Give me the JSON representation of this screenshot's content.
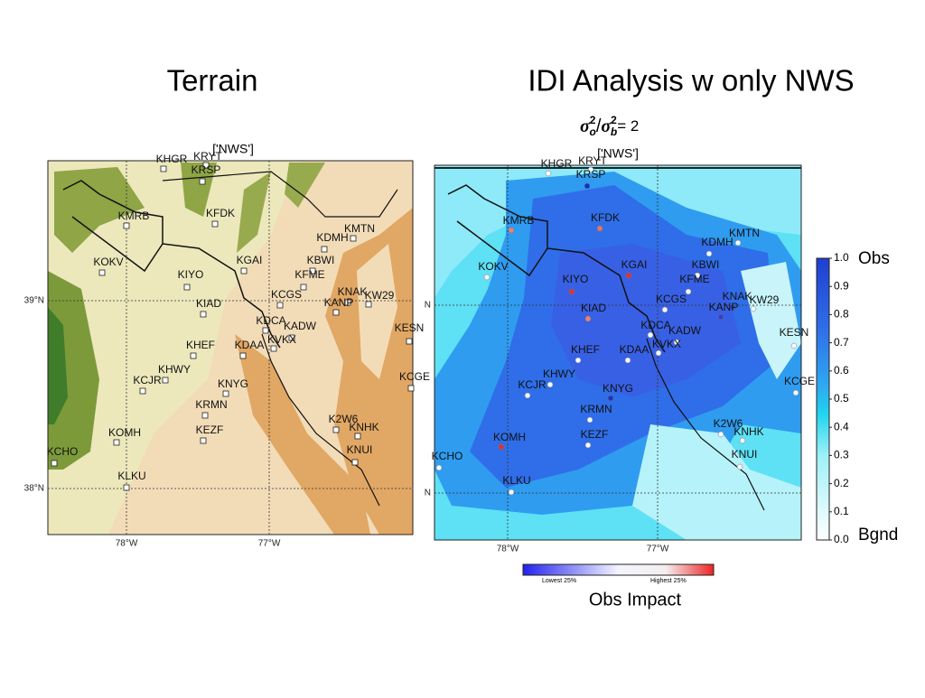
{
  "titles": {
    "terrain": "Terrain",
    "idi": "IDI Analysis w only NWS"
  },
  "ratio": {
    "num": "σ",
    "num_sup": "2",
    "num_sub": "o",
    "slash": "/",
    "den": "σ",
    "den_sup": "2",
    "den_sub": "b",
    "rest": "= 2"
  },
  "maps": [
    {
      "network": "['NWS']",
      "lat_labels": [
        "39°N",
        "38°N"
      ],
      "lon_labels": [
        "78°W",
        "77°W"
      ]
    },
    {
      "network": "['NWS']",
      "lat_labels": [
        "N",
        "N"
      ],
      "lon_labels": [
        "78°W",
        "77°W"
      ]
    }
  ],
  "stations": [
    "KHGR",
    "KRYT",
    "KRSP",
    "KMRB",
    "KFDK",
    "KOKV",
    "KGAI",
    "KDMH",
    "KMTN",
    "KBWI",
    "KIYO",
    "KFME",
    "KCGS",
    "KNAK",
    "KW29",
    "KANP",
    "KIAD",
    "KDCA",
    "KADW",
    "KVKX",
    "KESN",
    "KHEF",
    "KDAA",
    "KHWY",
    "KCJR",
    "KNYG",
    "KCGE",
    "KRMN",
    "K2W6",
    "KNHK",
    "KOMH",
    "KEZF",
    "KNUI",
    "KCHO",
    "KLKU"
  ],
  "colorbar": {
    "ticks": [
      "0.0",
      "0.1",
      "0.2",
      "0.3",
      "0.4",
      "0.5",
      "0.6",
      "0.7",
      "0.8",
      "0.9",
      "1.0"
    ],
    "top_label": "Obs",
    "bottom_label": "Bgnd"
  },
  "impact": {
    "low": "Lowest 25%",
    "high": "Highest 25%",
    "title": "Obs Impact"
  }
}
